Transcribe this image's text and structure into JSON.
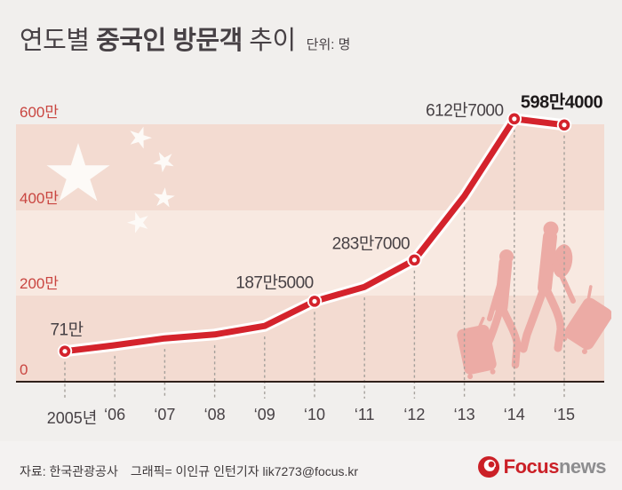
{
  "header": {
    "title_part1": "연도별 ",
    "title_part2": "중국인 방문객",
    "title_part3": " 추이",
    "unit_label": "단위: 명"
  },
  "chart_data": {
    "type": "line",
    "title": "연도별 중국인 방문객 추이",
    "unit": "명",
    "legend": "none",
    "grid": "horizontal bands with dashed vertical year lines",
    "ylim": [
      0,
      6200000
    ],
    "y_axis": {
      "ticks": [
        {
          "label": "0",
          "man": 0,
          "persons": 0
        },
        {
          "label": "200만",
          "man": 200,
          "persons": 2000000
        },
        {
          "label": "400만",
          "man": 400,
          "persons": 4000000
        },
        {
          "label": "600만",
          "man": 600,
          "persons": 6000000
        }
      ]
    },
    "points": [
      {
        "x_label": "2005년",
        "year": 2005,
        "value_man": 71,
        "persons": 710000,
        "label": "71만",
        "marker": true
      },
      {
        "x_label": "‘06",
        "year": 2006,
        "value_man": 85,
        "persons": 850000,
        "estimated": true
      },
      {
        "x_label": "‘07",
        "year": 2007,
        "value_man": 101,
        "persons": 1010000,
        "estimated": true
      },
      {
        "x_label": "‘08",
        "year": 2008,
        "value_man": 110,
        "persons": 1100000,
        "estimated": true
      },
      {
        "x_label": "‘09",
        "year": 2009,
        "value_man": 130,
        "persons": 1300000,
        "estimated": true
      },
      {
        "x_label": "‘10",
        "year": 2010,
        "value_man": 187.5,
        "persons": 1875000,
        "label": "187만5000",
        "marker": true
      },
      {
        "x_label": "‘11",
        "year": 2011,
        "value_man": 221,
        "persons": 2210000,
        "estimated": true
      },
      {
        "x_label": "‘12",
        "year": 2012,
        "value_man": 283.7,
        "persons": 2837000,
        "label": "283만7000",
        "marker": true
      },
      {
        "x_label": "‘13",
        "year": 2013,
        "value_man": 432.6,
        "persons": 4326000,
        "estimated": true
      },
      {
        "x_label": "‘14",
        "year": 2014,
        "value_man": 612.7,
        "persons": 6127000,
        "label": "612만7000",
        "marker": true
      },
      {
        "x_label": "‘15",
        "year": 2015,
        "value_man": 598.4,
        "persons": 5984000,
        "label": "598만4000",
        "marker": true,
        "emphasis": true
      }
    ]
  },
  "colors": {
    "background": "#f1efed",
    "band_dark": "#f3dbd1",
    "band_light": "#f8e9e1",
    "star": "#fdfaf7",
    "line_red": "#d4232c",
    "y_label_red": "#c94540",
    "text_dark": "#474145",
    "axis_line": "#30211b",
    "dash_gray": "#a5a09b",
    "silhouette_pink": "#ecaba5",
    "logo_red": "#cb2027",
    "logo_gray": "#8d8d8f"
  },
  "footer": {
    "source": "자료: 한국관광공사",
    "credit": "그래픽= 이인규 인턴기자 lik7273@focus.kr",
    "logo_focus": "Focus",
    "logo_news": "news"
  }
}
